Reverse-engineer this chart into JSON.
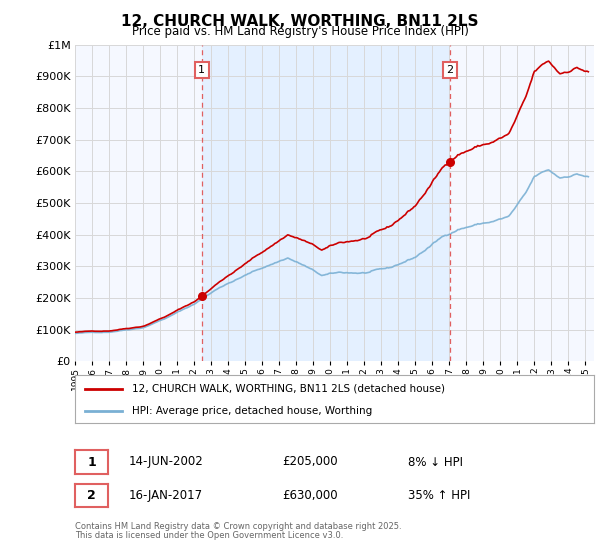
{
  "title": "12, CHURCH WALK, WORTHING, BN11 2LS",
  "subtitle": "Price paid vs. HM Land Registry's House Price Index (HPI)",
  "legend_line1": "12, CHURCH WALK, WORTHING, BN11 2LS (detached house)",
  "legend_line2": "HPI: Average price, detached house, Worthing",
  "sale1_label": "1",
  "sale1_date": "14-JUN-2002",
  "sale1_price": "£205,000",
  "sale1_hpi": "8% ↓ HPI",
  "sale2_label": "2",
  "sale2_date": "16-JAN-2017",
  "sale2_price": "£630,000",
  "sale2_hpi": "35% ↑ HPI",
  "footnote1": "Contains HM Land Registry data © Crown copyright and database right 2025.",
  "footnote2": "This data is licensed under the Open Government Licence v3.0.",
  "sale_color": "#cc0000",
  "hpi_color": "#7ab0d4",
  "dashed_line_color": "#e06060",
  "shade_color": "#ddeeff",
  "grid_color": "#d8d8d8",
  "ylim_min": 0,
  "ylim_max": 1000000,
  "background_color": "#ffffff",
  "plot_bg_color": "#f5f8ff"
}
